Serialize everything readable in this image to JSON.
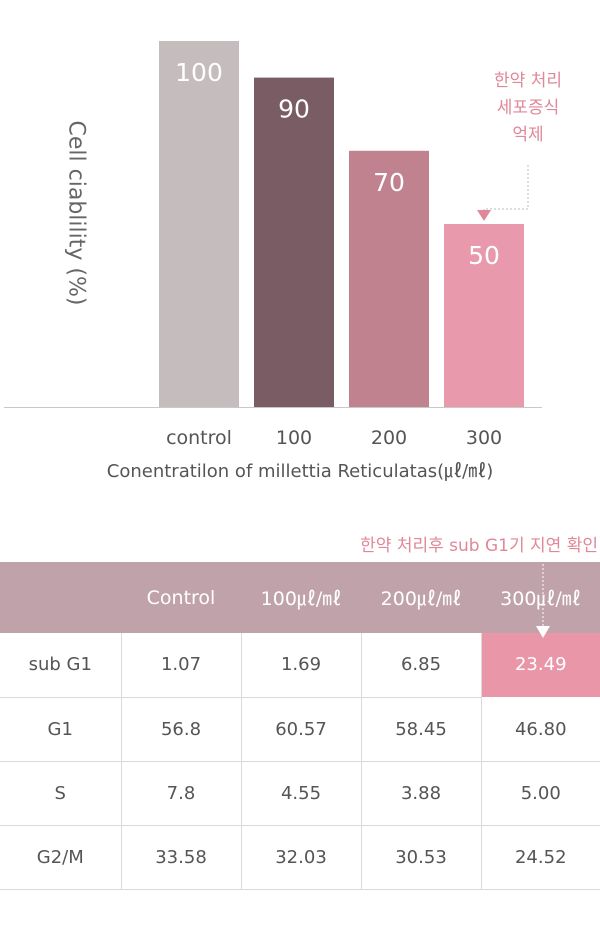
{
  "chart_data": {
    "type": "bar",
    "categories": [
      "control",
      "100",
      "200",
      "300"
    ],
    "values": [
      100,
      90,
      70,
      50
    ],
    "xlabel": "Conentratilon of millettia Reticulatas(㎕/㎖)",
    "ylabel": "Cell ciablility (%)",
    "ylim": [
      0,
      100
    ],
    "bar_colors": [
      "#c5bcbd",
      "#7a5c65",
      "#c0828f",
      "#e899ab"
    ],
    "annotation": [
      "한약 처리",
      "세포증식",
      "억제"
    ],
    "annotation_target": "300",
    "annotation_color": "#e0879a",
    "grid": false
  },
  "table": {
    "note": "한약 처리후 sub G1기 지연 확인",
    "headers": [
      "",
      "Control",
      "100㎕/㎖",
      "200㎕/㎖",
      "300㎕/㎖"
    ],
    "rows": [
      {
        "label": "sub G1",
        "values": [
          "1.07",
          "1.69",
          "6.85",
          "23.49"
        ]
      },
      {
        "label": "G1",
        "values": [
          "56.8",
          "60.57",
          "58.45",
          "46.80"
        ]
      },
      {
        "label": "S",
        "values": [
          "7.8",
          "4.55",
          "3.88",
          "5.00"
        ]
      },
      {
        "label": "G2/M",
        "values": [
          "33.58",
          "32.03",
          "30.53",
          "24.52"
        ]
      }
    ],
    "header_color": "#c0a2ab",
    "highlight_color": "#e896a8"
  }
}
